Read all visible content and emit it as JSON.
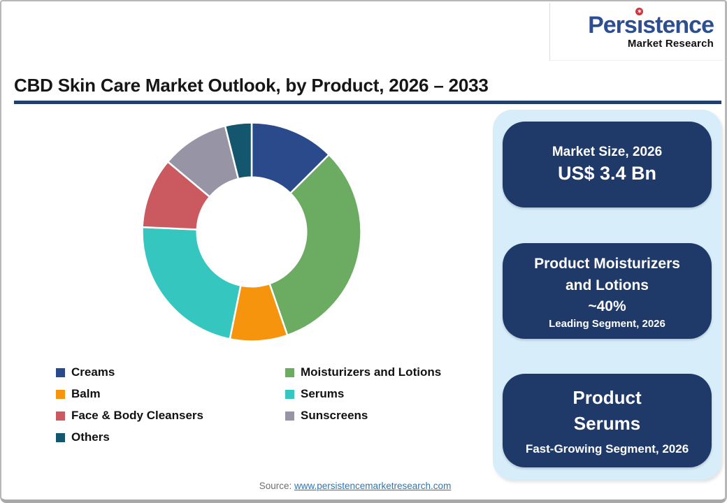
{
  "logo": {
    "brand": "Persistence",
    "subtitle": "Market Research",
    "brand_color": "#2D4E91",
    "star_color": "#D3323B"
  },
  "header": {
    "title": "CBD Skin Care Market Outlook, by Product, 2026 – 2033",
    "rule_color": "#20406B"
  },
  "chart_data": {
    "type": "pie",
    "subtype": "donut",
    "title": "CBD Skin Care Market Outlook, by Product, 2026 – 2033",
    "categories": [
      "Creams",
      "Moisturizers and Lotions",
      "Balm",
      "Serums",
      "Face & Body Cleansers",
      "Sunscreens",
      "Others"
    ],
    "values": [
      12.5,
      32.2,
      8.5,
      22.5,
      10.4,
      10.0,
      3.9
    ],
    "colors": [
      "#2B4A8B",
      "#6CAB62",
      "#F6940E",
      "#35C7BF",
      "#CB5A60",
      "#9794A6",
      "#14566D"
    ],
    "start_angle_deg": 0,
    "direction": "clockwise",
    "inner_radius_ratio": 0.5,
    "legend_position": "bottom-left",
    "grid": false
  },
  "panel": {
    "background": "#D7EDFA",
    "card_background": "#1F3A68",
    "cards": [
      {
        "title": "Market Size, 2026",
        "value": "US$ 3.4 Bn"
      },
      {
        "title": "Product Moisturizers\nand Lotions",
        "value": "~40%",
        "caption": "Leading Segment, 2026"
      },
      {
        "title": "Product\nSerums",
        "caption": "Fast-Growing Segment, 2026"
      }
    ]
  },
  "source": {
    "label": "Source:",
    "link_text": "www.persistencemarketresearch.com"
  }
}
